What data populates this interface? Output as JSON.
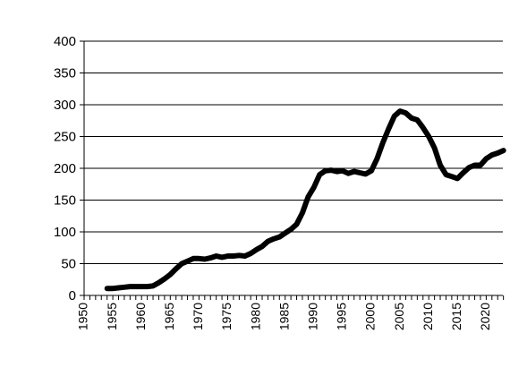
{
  "chart_data": {
    "type": "line",
    "title": "",
    "xlabel": "",
    "ylabel": "",
    "xlim": [
      1950,
      2023
    ],
    "ylim": [
      0,
      400
    ],
    "grid": "horizontal",
    "legend": "none",
    "colors": {
      "line": "#000000",
      "grid": "#000000",
      "axis": "#000000"
    },
    "y_ticks": [
      "0",
      "50",
      "100",
      "150",
      "200",
      "250",
      "300",
      "350",
      "400"
    ],
    "x_ticks": [
      "1950",
      "1955",
      "1960",
      "1965",
      "1970",
      "1975",
      "1980",
      "1985",
      "1990",
      "1995",
      "2000",
      "2005",
      "2010",
      "2015",
      "2020"
    ],
    "series": [
      {
        "x": [
          1954,
          1955,
          1956,
          1957,
          1958,
          1959,
          1960,
          1961,
          1962,
          1963,
          1964,
          1965,
          1966,
          1967,
          1968,
          1969,
          1970,
          1971,
          1972,
          1973,
          1974,
          1975,
          1976,
          1977,
          1978,
          1979,
          1980,
          1981,
          1982,
          1983,
          1984,
          1985,
          1986,
          1987,
          1988,
          1989,
          1990,
          1991,
          1992,
          1993,
          1994,
          1995,
          1996,
          1997,
          1998,
          1999,
          2000,
          2001,
          2002,
          2003,
          2004,
          2005,
          2006,
          2007,
          2008,
          2009,
          2010,
          2011,
          2012,
          2013,
          2014,
          2015,
          2016,
          2017,
          2018,
          2019,
          2020,
          2021,
          2022,
          2023
        ],
        "values": [
          11,
          11,
          12,
          13,
          14,
          14,
          14,
          14,
          15,
          20,
          26,
          33,
          42,
          50,
          54,
          58,
          58,
          57,
          59,
          62,
          60,
          62,
          62,
          63,
          62,
          66,
          72,
          77,
          85,
          89,
          92,
          98,
          104,
          112,
          130,
          155,
          170,
          190,
          196,
          197,
          195,
          196,
          192,
          195,
          193,
          191,
          196,
          215,
          240,
          262,
          282,
          290,
          287,
          279,
          276,
          264,
          250,
          232,
          205,
          190,
          187,
          184,
          193,
          201,
          205,
          205,
          215,
          221,
          224,
          228
        ]
      }
    ]
  }
}
